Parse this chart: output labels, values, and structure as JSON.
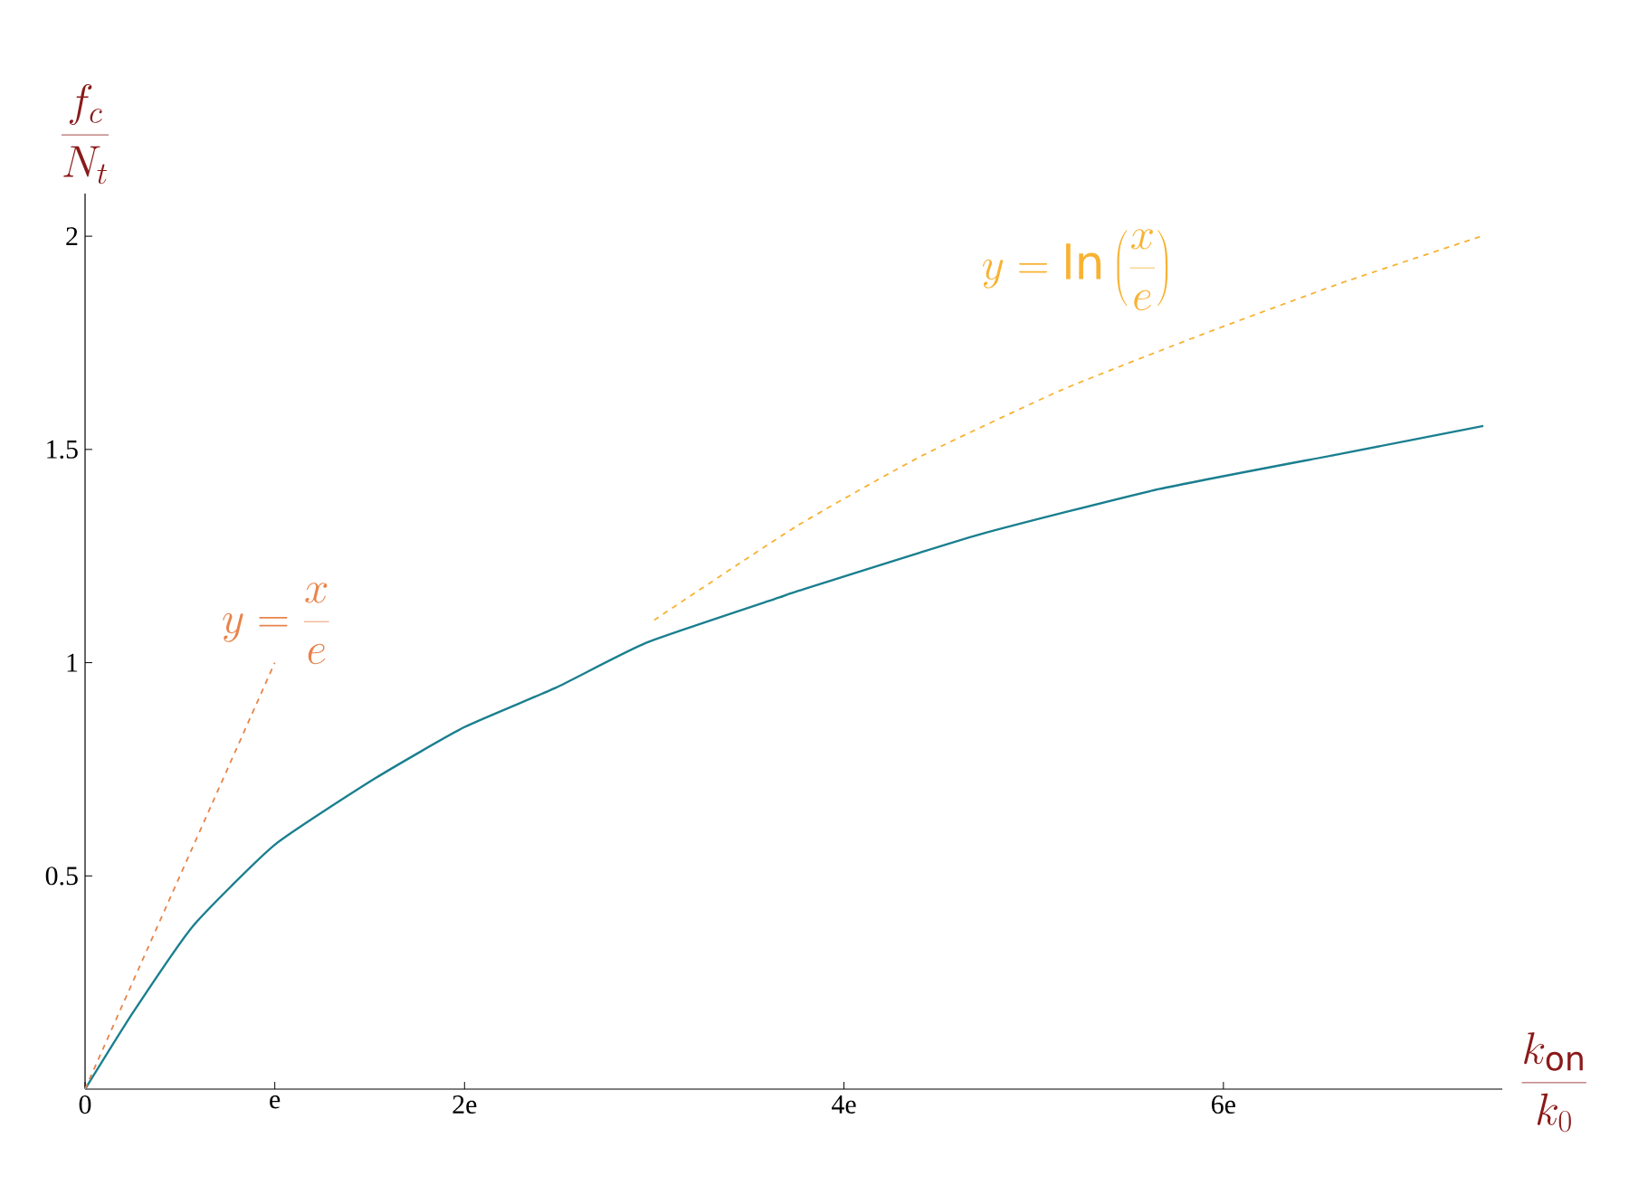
{
  "chart_data": {
    "type": "line",
    "xlabel": "\\frac{k_\\mathrm{on}}{k_0}",
    "ylabel": "\\frac{f_c}{N_t}",
    "xlim": [
      0,
      7.47
    ],
    "ylim": [
      0,
      2.1
    ],
    "xticks": [
      0,
      {
        "value": 1,
        "label": "e"
      },
      {
        "value": 2,
        "label": "2e"
      },
      {
        "value": 4,
        "label": "4e"
      },
      {
        "value": 6,
        "label": "6e"
      }
    ],
    "yticks": [
      0.5,
      1,
      1.5,
      2
    ],
    "grid": false,
    "series": [
      {
        "color": "#1a7f8f",
        "line_style": "solid",
        "x": [
          0,
          0.25,
          0.57,
          1,
          1.53,
          2,
          2.48,
          2.96,
          3.66,
          3.75,
          4.71,
          5.66,
          6.62,
          7.37
        ],
        "values": [
          0,
          0.178,
          0.383,
          0.573,
          0.729,
          0.849,
          0.941,
          1.047,
          1.153,
          1.167,
          1.3,
          1.407,
          1.49,
          1.555
        ]
      },
      {
        "color": "#e8834a",
        "line_style": "dashed",
        "x": [
          0,
          1
        ],
        "values": [
          0,
          1
        ]
      },
      {
        "color": "#f8b232",
        "line_style": "dashed",
        "x": [
          3,
          3.75,
          4.41,
          5.15,
          5.89,
          6.62,
          7.36
        ],
        "values": [
          1.1,
          1.32,
          1.485,
          1.64,
          1.77,
          1.89,
          2.0
        ]
      }
    ],
    "annotations": [
      "y=\\frac{x}{e}",
      "y=\\ln\\left(\\frac{x}{e}\\right)"
    ]
  }
}
